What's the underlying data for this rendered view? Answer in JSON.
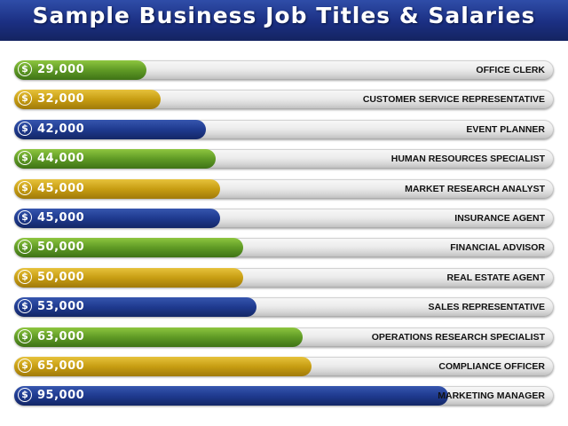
{
  "header": {
    "title": "Sample Business Job Titles & Salaries"
  },
  "colors": {
    "green": "#5f9a25",
    "yellow": "#c79d12",
    "blue": "#1f3a8f",
    "header": "#1b2f82"
  },
  "chart_data": {
    "type": "bar",
    "orientation": "horizontal",
    "title": "Sample Business Job Titles & Salaries",
    "xlim": [
      0,
      118000
    ],
    "categories": [
      "OFFICE CLERK",
      "CUSTOMER SERVICE REPRESENTATIVE",
      "EVENT PLANNER",
      "HUMAN RESOURCES SPECIALIST",
      "MARKET RESEARCH ANALYST",
      "INSURANCE AGENT",
      "FINANCIAL ADVISOR",
      "REAL ESTATE AGENT",
      "SALES REPRESENTATIVE",
      "OPERATIONS RESEARCH SPECIALIST",
      "COMPLIANCE OFFICER",
      "MARKETING MANAGER"
    ],
    "values": [
      29000,
      32000,
      42000,
      44000,
      45000,
      45000,
      50000,
      50000,
      53000,
      63000,
      65000,
      95000
    ],
    "value_labels": [
      "29,000",
      "32,000",
      "42,000",
      "44,000",
      "45,000",
      "45,000",
      "50,000",
      "50,000",
      "53,000",
      "63,000",
      "65,000",
      "95,000"
    ],
    "bar_colors": [
      "green",
      "yellow",
      "blue",
      "green",
      "yellow",
      "blue",
      "green",
      "yellow",
      "blue",
      "green",
      "yellow",
      "blue"
    ],
    "icon": "dollar-circle-icon"
  }
}
